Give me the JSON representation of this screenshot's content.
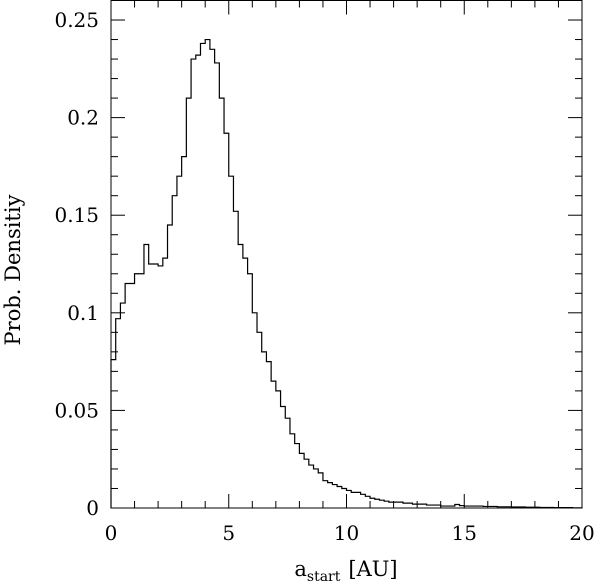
{
  "chart_data": {
    "type": "histogram",
    "xlabel": "a",
    "xlabel_subscript": "start",
    "xlabel_unit": "[AU]",
    "ylabel": "Prob. Densitiy",
    "xlim": [
      0,
      20
    ],
    "ylim": [
      0,
      0.26
    ],
    "x_ticks": [
      0,
      5,
      10,
      15,
      20
    ],
    "x_tick_labels": [
      "0",
      "5",
      "10",
      "15",
      "20"
    ],
    "y_ticks": [
      0,
      0.05,
      0.1,
      0.15,
      0.2,
      0.25
    ],
    "y_tick_labels": [
      "0",
      "0.05",
      "0.1",
      "0.15",
      "0.2",
      "0.25"
    ],
    "x_minor_step": 1,
    "y_minor_step": 0.01,
    "grid": false,
    "bin_width": 0.2,
    "values": [
      0.076,
      0.097,
      0.105,
      0.115,
      0.115,
      0.12,
      0.12,
      0.135,
      0.125,
      0.125,
      0.124,
      0.128,
      0.145,
      0.16,
      0.17,
      0.18,
      0.21,
      0.23,
      0.232,
      0.238,
      0.24,
      0.235,
      0.228,
      0.21,
      0.192,
      0.17,
      0.152,
      0.135,
      0.128,
      0.12,
      0.1,
      0.09,
      0.08,
      0.075,
      0.065,
      0.06,
      0.052,
      0.046,
      0.038,
      0.033,
      0.028,
      0.025,
      0.022,
      0.02,
      0.018,
      0.014,
      0.013,
      0.012,
      0.011,
      0.01,
      0.009,
      0.008,
      0.008,
      0.007,
      0.006,
      0.005,
      0.0045,
      0.004,
      0.0035,
      0.003,
      0.003,
      0.003,
      0.0025,
      0.0025,
      0.002,
      0.002,
      0.002,
      0.0015,
      0.0015,
      0.0015,
      0.001,
      0.001,
      0.001,
      0.0018,
      0.0012,
      0.001,
      0.001,
      0.001,
      0.001,
      0.0008,
      0.0008,
      0.0008,
      0.0006,
      0.0006,
      0.0006,
      0.0005,
      0.0005,
      0.0005,
      0.0004,
      0.0004,
      0.0004,
      0.0003,
      0.0003,
      0.0003,
      0.0002,
      0.0002,
      0.0002,
      0.0002,
      0.0001,
      0.0001
    ]
  }
}
